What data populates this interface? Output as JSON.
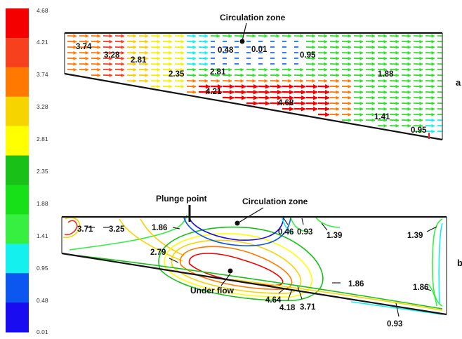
{
  "legend": {
    "values": [
      "4.68",
      "4.21",
      "3.74",
      "3.28",
      "2.81",
      "2.35",
      "1.88",
      "1.41",
      "0.95",
      "0.48",
      "0.01"
    ],
    "colors": [
      "#f40000",
      "#f6401e",
      "#ff7800",
      "#f5d400",
      "#ffff00",
      "#18c018",
      "#18e018",
      "#36ef40",
      "#13f0ee",
      "#0c57f0",
      "#1a0cf0"
    ]
  },
  "panel_a": {
    "label": "a",
    "title": "Circulation zone",
    "value_labels": [
      "3.74",
      "3.28",
      "2.81",
      "2.35",
      "2.81",
      "0.48",
      "0.01",
      "0.95",
      "1.88",
      "4.21",
      "4.68",
      "1.41",
      "0.95"
    ]
  },
  "panel_b": {
    "label": "b",
    "plunge_point": "Plunge point",
    "circulation_zone": "Circulation zone",
    "under_flow": "Under flow",
    "value_labels": [
      "3.71",
      "3.25",
      "1.86",
      "0.46",
      "0.93",
      "1.39",
      "1.39",
      "2.79",
      "1.86",
      "1.86",
      "4.64",
      "4.18",
      "3.71",
      "0.93"
    ]
  }
}
